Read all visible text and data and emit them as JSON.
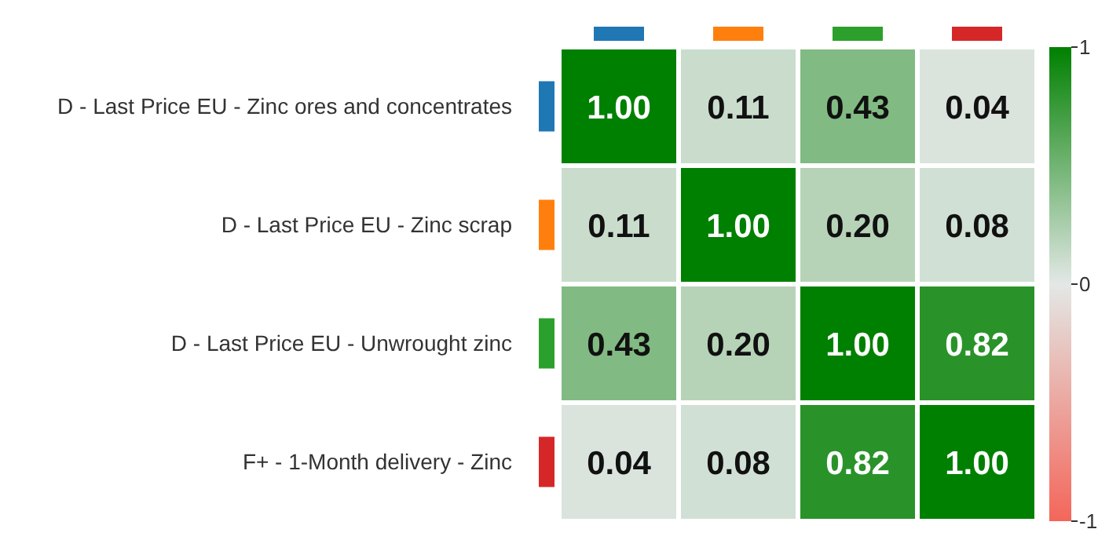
{
  "chart_data": {
    "type": "heatmap",
    "categories": [
      null,
      null,
      null,
      null
    ],
    "y_categories": [
      "D - Last Price EU - Zinc ores and concentrates",
      "D - Last Price EU - Zinc scrap",
      "D - Last Price EU - Unwrought zinc",
      "F+ - 1-Month delivery - Zinc"
    ],
    "cells": [
      [
        1.0,
        0.11,
        0.43,
        0.04
      ],
      [
        0.11,
        1.0,
        0.2,
        0.08
      ],
      [
        0.43,
        0.2,
        1.0,
        0.82
      ],
      [
        0.04,
        0.08,
        0.82,
        1.0
      ]
    ],
    "cell_labels": [
      [
        "1.00",
        "0.11",
        "0.43",
        "0.04"
      ],
      [
        "0.11",
        "1.00",
        "0.20",
        "0.08"
      ],
      [
        "0.43",
        "0.20",
        "1.00",
        "0.82"
      ],
      [
        "0.04",
        "0.08",
        "0.82",
        "1.00"
      ]
    ],
    "clim": [
      -1,
      1
    ],
    "cticks": [
      -1,
      0,
      1
    ]
  }
}
